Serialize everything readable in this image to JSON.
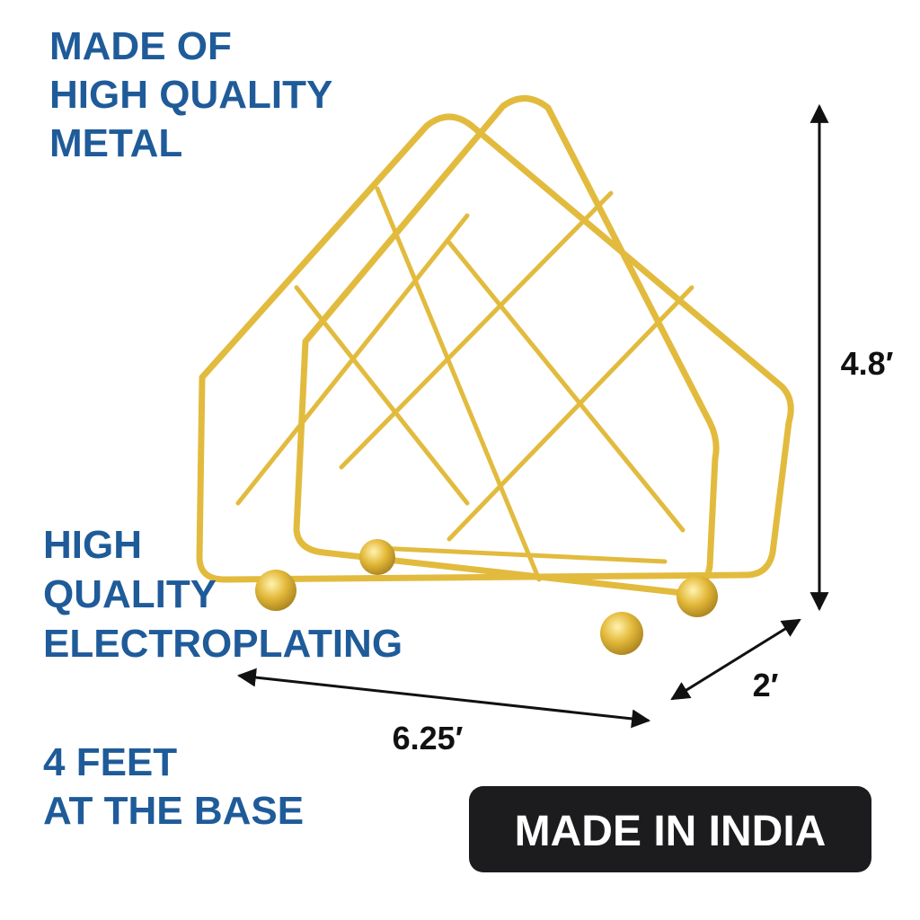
{
  "features": [
    {
      "lines": [
        "MADE OF",
        "HIGH QUALITY",
        "METAL"
      ]
    },
    {
      "lines": [
        "HIGH",
        "QUALITY",
        "ELECTROPLATING"
      ]
    },
    {
      "lines": [
        "4 FEET",
        "AT THE BASE"
      ]
    }
  ],
  "dimensions": {
    "height": "4.8′",
    "depth": "2′",
    "width": "6.25′"
  },
  "badge": "MADE IN INDIA"
}
